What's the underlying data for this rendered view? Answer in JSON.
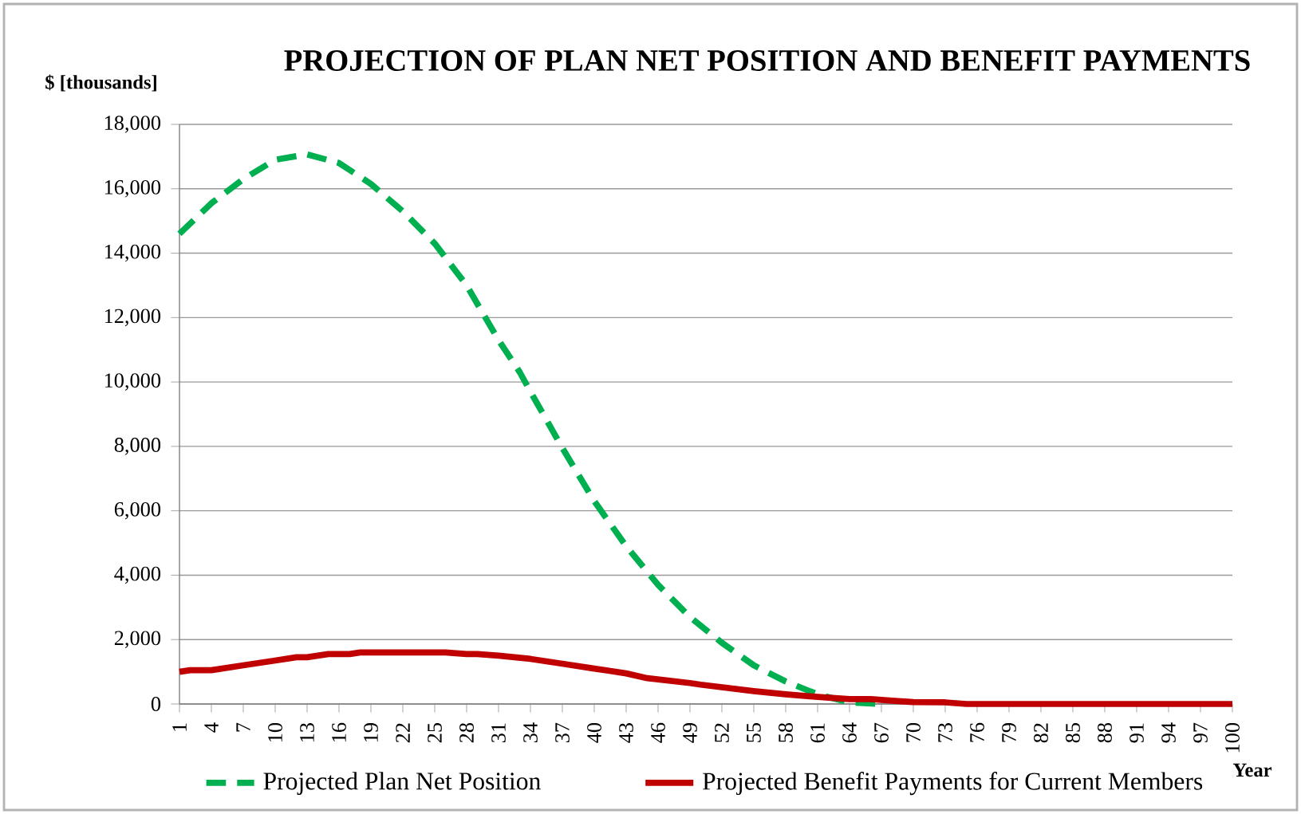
{
  "chart_data": {
    "type": "line",
    "title": "PROJECTION OF PLAN NET POSITION AND BENEFIT PAYMENTS",
    "ylabel": "$ [thousands]",
    "xlabel": "Year",
    "xlim": [
      1,
      100
    ],
    "xticks": [
      1,
      4,
      7,
      10,
      13,
      16,
      19,
      22,
      25,
      28,
      31,
      34,
      37,
      40,
      43,
      46,
      49,
      52,
      55,
      58,
      61,
      64,
      67,
      70,
      73,
      76,
      79,
      82,
      85,
      88,
      91,
      94,
      97,
      100
    ],
    "ylim": [
      0,
      18000
    ],
    "yticks": [
      0,
      {
        "value": 2000,
        "label": "2,000"
      },
      {
        "value": 4000,
        "label": "4,000"
      },
      {
        "value": 6000,
        "label": "6,000"
      },
      {
        "value": 8000,
        "label": "8,000"
      },
      {
        "value": 10000,
        "label": "10,000"
      },
      {
        "value": 12000,
        "label": "12,000"
      },
      {
        "value": 14000,
        "label": "14,000"
      },
      {
        "value": 16000,
        "label": "16,000"
      },
      {
        "value": 18000,
        "label": "18,000"
      }
    ],
    "grid": "y",
    "legend": "bottom",
    "marker": "none",
    "series": [
      {
        "name": "Projected Plan Net Position",
        "color": "#00b050",
        "line_style": "dashed",
        "x": [
          1,
          4,
          7,
          10,
          13,
          16,
          19,
          22,
          25,
          28,
          31,
          33,
          34,
          37,
          40,
          43,
          46,
          49,
          52,
          55,
          58,
          61,
          64,
          67
        ],
        "values": [
          14600,
          15550,
          16300,
          16900,
          17070,
          16800,
          16150,
          15300,
          14300,
          13000,
          11300,
          10300,
          9700,
          7950,
          6300,
          4900,
          3700,
          2700,
          1900,
          1200,
          700,
          300,
          50,
          0
        ]
      },
      {
        "name": "Projected Benefit Payments for Current Members",
        "color": "#c00000",
        "line_style": "solid",
        "x": [
          1,
          2,
          4,
          7,
          10,
          12,
          13,
          15,
          17,
          18,
          26,
          28,
          29,
          31,
          34,
          37,
          40,
          43,
          45,
          49,
          50,
          55,
          58,
          61,
          64,
          66,
          68,
          70,
          73,
          75,
          80,
          90,
          100
        ],
        "values": [
          1000,
          1050,
          1050,
          1200,
          1350,
          1450,
          1450,
          1550,
          1550,
          1600,
          1600,
          1550,
          1550,
          1500,
          1400,
          1250,
          1100,
          950,
          800,
          650,
          600,
          400,
          300,
          220,
          150,
          150,
          100,
          60,
          50,
          0,
          0,
          0,
          0
        ]
      }
    ]
  }
}
